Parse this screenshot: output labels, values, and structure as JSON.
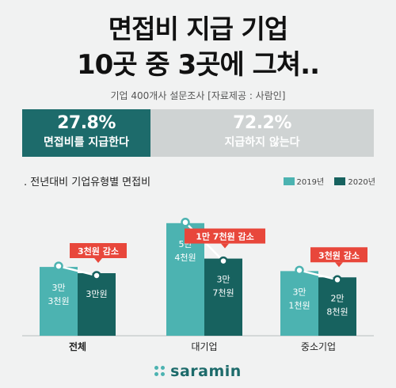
{
  "header": {
    "title_line1": "면접비 지급 기업",
    "title_line2": "10곳 중 3곳에 그쳐..",
    "subtitle": "기업 400개사 설문조사  [자료제공 : 사람인]"
  },
  "ratio": {
    "paying_pct": "27.8%",
    "paying_label": "면접비를 지급한다",
    "not_paying_pct": "72.2%",
    "not_paying_label": "지급하지 않는다"
  },
  "section_title": "전년대비 기업유형별 면접비",
  "logo": "saramin",
  "colors": {
    "y2019": "#4cb3b1",
    "y2020": "#17625f",
    "callout": "#e8473b",
    "dark_banner": "#1d6b6b",
    "gray_banner": "#cfd3d3"
  },
  "chart_data": {
    "type": "bar",
    "categories": [
      "전체",
      "대기업",
      "중소기업"
    ],
    "series": [
      {
        "name": "2019년",
        "values": [
          33000,
          54000,
          31000
        ],
        "labels": [
          "3만\n3천원",
          "5만\n4천원",
          "3만\n1천원"
        ]
      },
      {
        "name": "2020년",
        "values": [
          30000,
          37000,
          28000
        ],
        "labels": [
          "3만원",
          "3만\n7천원",
          "2만\n8천원"
        ]
      }
    ],
    "annotations": [
      "3천원 감소",
      "1만 7천원 감소",
      "3천원 감소"
    ],
    "ylim": [
      0,
      60000
    ]
  }
}
